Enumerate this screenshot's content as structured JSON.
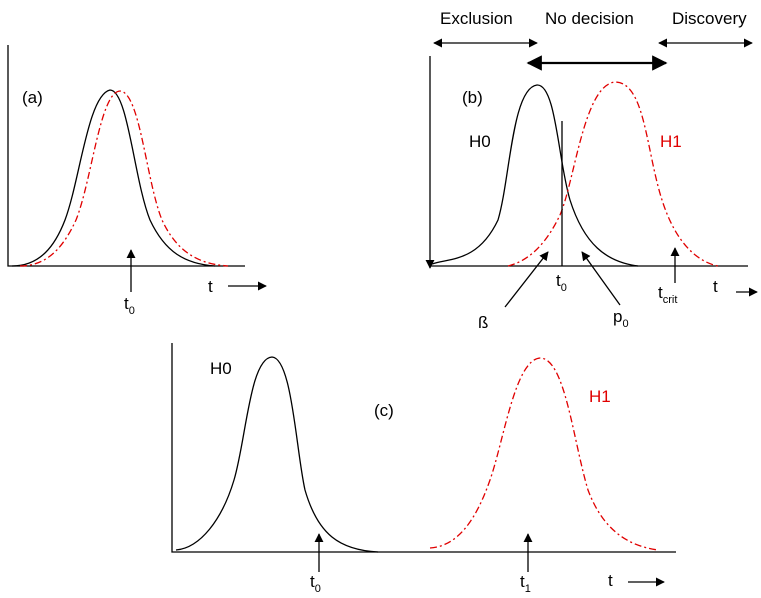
{
  "panel_a": {
    "label": "(a)",
    "t0_label": "t",
    "t0_sub": "0",
    "t_label": "t"
  },
  "panel_b": {
    "label": "(b)",
    "h0_label": "H0",
    "h1_label": "H1",
    "beta_label": "ß",
    "t0_label": "t",
    "t0_sub": "0",
    "p0_label": "p",
    "p0_sub": "0",
    "tcrit_label": "t",
    "tcrit_sub": "crit",
    "t_label": "t",
    "regions": {
      "exclusion": "Exclusion",
      "no_decision": "No decision",
      "discovery": "Discovery"
    }
  },
  "panel_c": {
    "label": "(c)",
    "h0_label": "H0",
    "h1_label": "H1",
    "t0_label": "t",
    "t0_sub": "0",
    "t1_label": "t",
    "t1_sub": "1",
    "t_label": "t"
  },
  "colors": {
    "h0": "#000000",
    "h1": "#e00000"
  }
}
